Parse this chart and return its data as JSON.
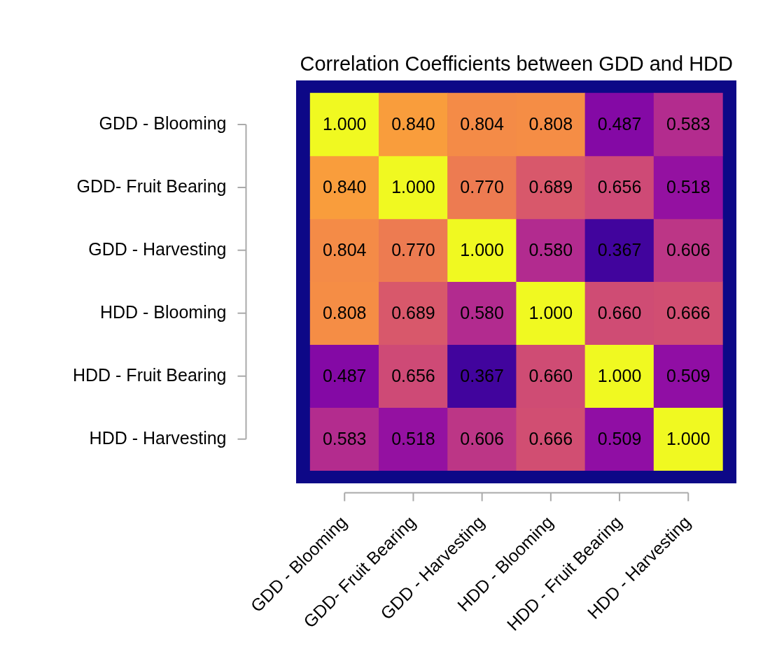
{
  "chart_data": {
    "type": "heatmap",
    "title": "Correlation Coefficients between GDD and HDD",
    "categories": [
      "GDD - Blooming",
      "GDD- Fruit Bearing",
      "GDD - Harvesting",
      "HDD - Blooming",
      "HDD - Fruit Bearing",
      "HDD - Harvesting"
    ],
    "y_categories": [
      "GDD - Blooming",
      "GDD- Fruit Bearing",
      "GDD - Harvesting",
      "HDD - Blooming",
      "HDD - Fruit Bearing",
      "HDD - Harvesting"
    ],
    "cells": [
      [
        1.0,
        0.84,
        0.804,
        0.808,
        0.487,
        0.583
      ],
      [
        0.84,
        1.0,
        0.77,
        0.689,
        0.656,
        0.518
      ],
      [
        0.804,
        0.77,
        1.0,
        0.58,
        0.367,
        0.606
      ],
      [
        0.808,
        0.689,
        0.58,
        1.0,
        0.66,
        0.666
      ],
      [
        0.487,
        0.656,
        0.367,
        0.66,
        1.0,
        0.509
      ],
      [
        0.583,
        0.518,
        0.606,
        0.666,
        0.509,
        1.0
      ]
    ],
    "cell_labels": [
      [
        "1.000",
        "0.840",
        "0.804",
        "0.808",
        "0.487",
        "0.583"
      ],
      [
        "0.840",
        "1.000",
        "0.770",
        "0.689",
        "0.656",
        "0.518"
      ],
      [
        "0.804",
        "0.770",
        "1.000",
        "0.580",
        "0.367",
        "0.606"
      ],
      [
        "0.808",
        "0.689",
        "0.580",
        "1.000",
        "0.660",
        "0.666"
      ],
      [
        "0.487",
        "0.656",
        "0.367",
        "0.660",
        "1.000",
        "0.509"
      ],
      [
        "0.583",
        "0.518",
        "0.606",
        "0.666",
        "0.509",
        "1.000"
      ]
    ]
  }
}
